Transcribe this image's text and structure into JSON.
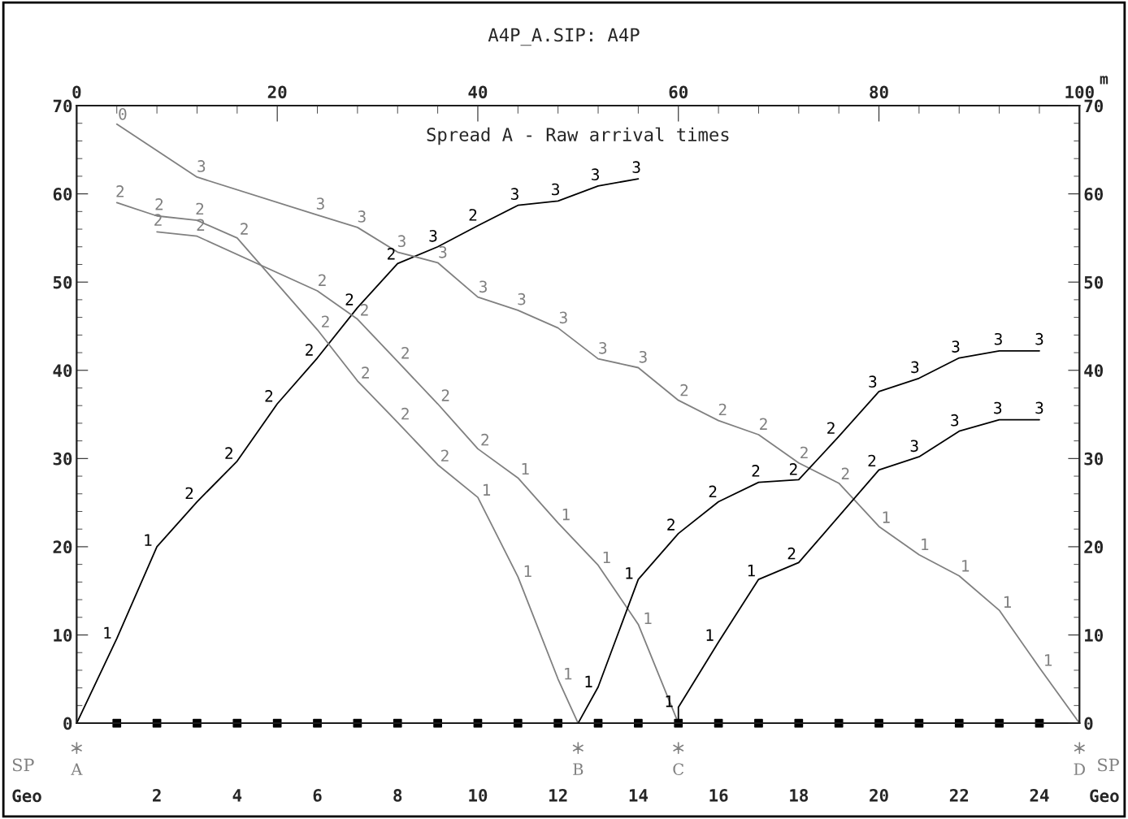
{
  "chart_data": {
    "type": "line",
    "title": "A4P_A.SIP: A4P",
    "subtitle": "Spread A - Raw arrival times",
    "xlabel": "Geo",
    "x2label": "m",
    "xlim": [
      0,
      25
    ],
    "xticks": [
      2,
      4,
      6,
      8,
      10,
      12,
      14,
      16,
      18,
      20,
      22,
      24
    ],
    "x2lim": [
      0,
      100
    ],
    "x2ticks": [
      0,
      20,
      40,
      60,
      80,
      100
    ],
    "ylim": [
      0,
      70
    ],
    "yticks": [
      0,
      10,
      20,
      30,
      40,
      50,
      60,
      70
    ],
    "y2lim": [
      0,
      70
    ],
    "y2ticks": [
      0,
      10,
      20,
      30,
      40,
      50,
      60,
      70
    ],
    "grid": false,
    "legend": false,
    "line_style": "solid",
    "series": [
      {
        "color": "#000000",
        "x": [
          0,
          1,
          2,
          3,
          4,
          5,
          6,
          7,
          8,
          9,
          10,
          11,
          12,
          13,
          14
        ],
        "values": [
          0,
          9.6,
          20.0,
          25.1,
          29.7,
          36.2,
          41.4,
          47.1,
          52.1,
          54.0,
          56.4,
          58.7,
          59.2,
          60.9,
          61.7
        ]
      },
      {
        "color": "#808080",
        "x": [
          1,
          2,
          3,
          4,
          6,
          7,
          8,
          9,
          10,
          11,
          12,
          12.5
        ],
        "values": [
          59.0,
          57.5,
          57.0,
          55.0,
          44.6,
          38.8,
          34.1,
          29.3,
          25.6,
          16.6,
          5.0,
          0
        ]
      },
      {
        "color": "#808080",
        "x": [
          2,
          3,
          6,
          7,
          8,
          9,
          10,
          11,
          12,
          13,
          14,
          15
        ],
        "values": [
          55.7,
          55.2,
          49.0,
          45.8,
          41.0,
          36.2,
          31.1,
          27.8,
          22.7,
          17.9,
          11.2,
          0
        ]
      },
      {
        "color": "#808080",
        "x": [
          1,
          3,
          6,
          7,
          8,
          9,
          10,
          11,
          12,
          13,
          14,
          15,
          16,
          17,
          18,
          19,
          20,
          21,
          22,
          23,
          24,
          25
        ],
        "values": [
          67.9,
          61.9,
          57.6,
          56.2,
          53.4,
          52.2,
          48.3,
          46.8,
          44.8,
          41.3,
          40.3,
          36.6,
          34.3,
          32.7,
          29.5,
          27.2,
          22.3,
          19.1,
          16.7,
          12.8,
          6.3,
          0
        ]
      },
      {
        "color": "#000000",
        "x": [
          12.5,
          13,
          14,
          15,
          16,
          17,
          18,
          19,
          20,
          21,
          22,
          23,
          24
        ],
        "values": [
          0,
          4.1,
          16.3,
          21.5,
          25.1,
          27.3,
          27.6,
          32.5,
          37.6,
          39.1,
          41.4,
          42.2,
          42.2
        ]
      },
      {
        "color": "#000000",
        "x": [
          15,
          15,
          16,
          17,
          18,
          20,
          21,
          22,
          23,
          24
        ],
        "values": [
          0,
          1.8,
          9.2,
          16.3,
          18.2,
          28.7,
          30.2,
          33.1,
          34.4,
          34.4
        ]
      },
      {
        "type": "scatter",
        "marker": "square",
        "color": "#000000",
        "x": [
          1,
          2,
          3,
          4,
          5,
          6,
          7,
          8,
          9,
          10,
          11,
          12,
          13,
          14,
          15,
          16,
          17,
          18,
          19,
          20,
          21,
          22,
          23,
          24
        ],
        "values": [
          0,
          0,
          0,
          0,
          0,
          0,
          0,
          0,
          0,
          0,
          0,
          0,
          0,
          0,
          0,
          0,
          0,
          0,
          0,
          0,
          0,
          0,
          0,
          0
        ]
      }
    ],
    "annotations": [
      "SP",
      {
        "text": "A",
        "x": 0,
        "y": 0
      },
      {
        "text": "B",
        "x": 12.5,
        "y": 0
      },
      {
        "text": "C",
        "x": 15,
        "y": 0
      },
      {
        "text": "D",
        "x": 25,
        "y": 0
      },
      {
        "text": "1",
        "x": 1,
        "y": 9.6
      },
      {
        "text": "1",
        "x": 2,
        "y": 20.0
      },
      {
        "text": "2",
        "x": 3,
        "y": 25.1
      },
      {
        "text": "2",
        "x": 4,
        "y": 29.7
      },
      {
        "text": "2",
        "x": 5,
        "y": 36.2
      },
      {
        "text": "2",
        "x": 6,
        "y": 41.4
      },
      {
        "text": "2",
        "x": 7,
        "y": 47.1
      },
      {
        "text": "2",
        "x": 8,
        "y": 52.1
      },
      {
        "text": "3",
        "x": 9,
        "y": 54.0
      },
      {
        "text": "2",
        "x": 10,
        "y": 56.4
      },
      {
        "text": "3",
        "x": 11,
        "y": 58.7
      },
      {
        "text": "3",
        "x": 12,
        "y": 59.2
      },
      {
        "text": "3",
        "x": 13,
        "y": 60.9
      },
      {
        "text": "3",
        "x": 14,
        "y": 61.7
      },
      {
        "text": "2",
        "x": 1,
        "y": 59.0
      },
      {
        "text": "2",
        "x": 2,
        "y": 57.5
      },
      {
        "text": "2",
        "x": 3,
        "y": 57.0
      },
      {
        "text": "2",
        "x": 4,
        "y": 55.0
      },
      {
        "text": "2",
        "x": 6,
        "y": 44.6
      },
      {
        "text": "2",
        "x": 7,
        "y": 38.8
      },
      {
        "text": "2",
        "x": 8,
        "y": 34.1
      },
      {
        "text": "2",
        "x": 9,
        "y": 29.3
      },
      {
        "text": "1",
        "x": 10,
        "y": 25.6
      },
      {
        "text": "1",
        "x": 11,
        "y": 16.6
      },
      {
        "text": "1",
        "x": 12,
        "y": 5.0
      },
      {
        "text": "2",
        "x": 2,
        "y": 55.7
      },
      {
        "text": "2",
        "x": 3,
        "y": 55.2
      },
      {
        "text": "2",
        "x": 6,
        "y": 49.0
      },
      {
        "text": "2",
        "x": 7,
        "y": 45.8
      },
      {
        "text": "2",
        "x": 8,
        "y": 41.0
      },
      {
        "text": "2",
        "x": 9,
        "y": 36.2
      },
      {
        "text": "2",
        "x": 10,
        "y": 31.1
      },
      {
        "text": "1",
        "x": 11,
        "y": 27.8
      },
      {
        "text": "1",
        "x": 12,
        "y": 22.7
      },
      {
        "text": "1",
        "x": 13,
        "y": 17.9
      },
      {
        "text": "1",
        "x": 14,
        "y": 11.2
      },
      {
        "text": "0",
        "x": 1,
        "y": 67.9
      },
      {
        "text": "3",
        "x": 3,
        "y": 61.9
      },
      {
        "text": "3",
        "x": 6,
        "y": 57.6
      },
      {
        "text": "3",
        "x": 7,
        "y": 56.2
      },
      {
        "text": "3",
        "x": 8,
        "y": 53.4
      },
      {
        "text": "3",
        "x": 9,
        "y": 52.2
      },
      {
        "text": "3",
        "x": 10,
        "y": 48.3
      },
      {
        "text": "3",
        "x": 11,
        "y": 46.8
      },
      {
        "text": "3",
        "x": 12,
        "y": 44.8
      },
      {
        "text": "3",
        "x": 13,
        "y": 41.3
      },
      {
        "text": "3",
        "x": 14,
        "y": 40.3
      },
      {
        "text": "2",
        "x": 15,
        "y": 36.6
      },
      {
        "text": "2",
        "x": 16,
        "y": 34.3
      },
      {
        "text": "2",
        "x": 17,
        "y": 32.7
      },
      {
        "text": "2",
        "x": 18,
        "y": 29.5
      },
      {
        "text": "2",
        "x": 19,
        "y": 27.2
      },
      {
        "text": "1",
        "x": 20,
        "y": 22.3
      },
      {
        "text": "1",
        "x": 21,
        "y": 19.1
      },
      {
        "text": "1",
        "x": 22,
        "y": 16.7
      },
      {
        "text": "1",
        "x": 23,
        "y": 12.8
      },
      {
        "text": "1",
        "x": 24,
        "y": 6.3
      },
      {
        "text": "1",
        "x": 13,
        "y": 4.1
      },
      {
        "text": "1",
        "x": 14,
        "y": 16.3
      },
      {
        "text": "2",
        "x": 15,
        "y": 21.5
      },
      {
        "text": "2",
        "x": 16,
        "y": 25.1
      },
      {
        "text": "2",
        "x": 17,
        "y": 27.3
      },
      {
        "text": "2",
        "x": 18,
        "y": 27.6
      },
      {
        "text": "2",
        "x": 19,
        "y": 32.5
      },
      {
        "text": "3",
        "x": 20,
        "y": 37.6
      },
      {
        "text": "3",
        "x": 21,
        "y": 39.1
      },
      {
        "text": "3",
        "x": 22,
        "y": 41.4
      },
      {
        "text": "3",
        "x": 23,
        "y": 42.2
      },
      {
        "text": "3",
        "x": 24,
        "y": 42.2
      },
      {
        "text": "1",
        "x": 15,
        "y": 1.8
      },
      {
        "text": "1",
        "x": 16,
        "y": 9.2
      },
      {
        "text": "1",
        "x": 17,
        "y": 16.3
      },
      {
        "text": "2",
        "x": 18,
        "y": 18.2
      },
      {
        "text": "2",
        "x": 20,
        "y": 28.7
      },
      {
        "text": "3",
        "x": 21,
        "y": 30.2
      },
      {
        "text": "3",
        "x": 22,
        "y": 33.1
      },
      {
        "text": "3",
        "x": 23,
        "y": 34.4
      },
      {
        "text": "3",
        "x": 24,
        "y": 34.4
      }
    ]
  }
}
